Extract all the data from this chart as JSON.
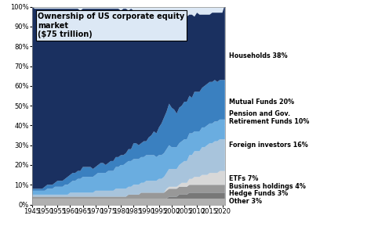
{
  "title": "Ownership of US corporate equity\nmarket\n($75 trillion)",
  "plot_bg_color": "#dce8f5",
  "fig_bg_color": "#ffffff",
  "years": [
    1945,
    1946,
    1947,
    1948,
    1949,
    1950,
    1951,
    1952,
    1953,
    1954,
    1955,
    1956,
    1957,
    1958,
    1959,
    1960,
    1961,
    1962,
    1963,
    1964,
    1965,
    1966,
    1967,
    1968,
    1969,
    1970,
    1971,
    1972,
    1973,
    1974,
    1975,
    1976,
    1977,
    1978,
    1979,
    1980,
    1981,
    1982,
    1983,
    1984,
    1985,
    1986,
    1987,
    1988,
    1989,
    1990,
    1991,
    1992,
    1993,
    1994,
    1995,
    1996,
    1997,
    1998,
    1999,
    2000,
    2001,
    2002,
    2003,
    2004,
    2005,
    2006,
    2007,
    2008,
    2009,
    2010,
    2011,
    2012,
    2013,
    2014,
    2015,
    2016,
    2017,
    2018,
    2019,
    2020,
    2021
  ],
  "series": {
    "Other": [
      3,
      3,
      3,
      3,
      3,
      3,
      3,
      3,
      3,
      3,
      3,
      3,
      3,
      3,
      3,
      3,
      3,
      3,
      3,
      3,
      3,
      3,
      3,
      3,
      3,
      3,
      3,
      3,
      3,
      3,
      3,
      3,
      3,
      3,
      3,
      3,
      3,
      3,
      3,
      3,
      3,
      3,
      3,
      3,
      3,
      3,
      3,
      3,
      3,
      3,
      3,
      3,
      3,
      3,
      3,
      3,
      3,
      3,
      3,
      3,
      3,
      3,
      3,
      3,
      3,
      3,
      3,
      3,
      3,
      3,
      3,
      3,
      3,
      3,
      3,
      3,
      3
    ],
    "Hedge Funds": [
      0,
      0,
      0,
      0,
      0,
      0,
      0,
      0,
      0,
      0,
      0,
      0,
      0,
      0,
      0,
      0,
      0,
      0,
      0,
      0,
      0,
      0,
      0,
      0,
      0,
      0,
      0,
      0,
      0,
      0,
      0,
      0,
      0,
      0,
      0,
      0,
      0,
      0,
      0,
      0,
      0,
      0,
      0,
      0,
      0,
      0,
      0,
      0,
      0,
      0,
      0,
      0,
      0,
      0,
      1,
      1,
      1,
      1,
      2,
      2,
      2,
      2,
      3,
      3,
      3,
      3,
      3,
      3,
      3,
      3,
      3,
      3,
      3,
      3,
      3,
      3,
      3
    ],
    "Business holdings": [
      1,
      1,
      1,
      1,
      1,
      1,
      1,
      1,
      1,
      1,
      1,
      1,
      1,
      1,
      1,
      1,
      1,
      1,
      1,
      1,
      1,
      1,
      1,
      1,
      1,
      1,
      1,
      1,
      1,
      1,
      1,
      1,
      1,
      1,
      1,
      1,
      1,
      1,
      2,
      2,
      2,
      2,
      2,
      3,
      3,
      3,
      3,
      3,
      3,
      3,
      3,
      3,
      3,
      4,
      4,
      4,
      4,
      4,
      4,
      4,
      4,
      4,
      4,
      4,
      4,
      4,
      4,
      4,
      4,
      4,
      4,
      4,
      4,
      4,
      4,
      4,
      4
    ],
    "ETFs": [
      0,
      0,
      0,
      0,
      0,
      0,
      0,
      0,
      0,
      0,
      0,
      0,
      0,
      0,
      0,
      0,
      0,
      0,
      0,
      0,
      0,
      0,
      0,
      0,
      0,
      0,
      0,
      0,
      0,
      0,
      0,
      0,
      0,
      0,
      0,
      0,
      0,
      0,
      0,
      0,
      0,
      0,
      0,
      0,
      0,
      0,
      0,
      0,
      0,
      0,
      0,
      0,
      0,
      1,
      1,
      1,
      1,
      1,
      1,
      2,
      2,
      2,
      3,
      3,
      4,
      4,
      4,
      5,
      5,
      5,
      6,
      6,
      6,
      6,
      7,
      7,
      7
    ],
    "Foreign investors": [
      1,
      1,
      1,
      1,
      1,
      1,
      1,
      1,
      1,
      1,
      1,
      1,
      1,
      1,
      1,
      2,
      2,
      2,
      2,
      2,
      2,
      2,
      2,
      2,
      2,
      3,
      3,
      3,
      3,
      3,
      3,
      3,
      3,
      4,
      4,
      4,
      4,
      4,
      4,
      4,
      5,
      5,
      5,
      5,
      5,
      6,
      6,
      6,
      6,
      6,
      7,
      7,
      8,
      8,
      9,
      9,
      9,
      9,
      10,
      10,
      11,
      11,
      12,
      12,
      13,
      13,
      13,
      14,
      14,
      15,
      15,
      15,
      16,
      16,
      16,
      16,
      16
    ],
    "Pension and Gov. Retirement Funds": [
      2,
      2,
      2,
      2,
      2,
      2,
      3,
      3,
      3,
      4,
      4,
      4,
      4,
      5,
      5,
      5,
      6,
      6,
      7,
      7,
      8,
      8,
      8,
      8,
      8,
      8,
      9,
      9,
      9,
      9,
      10,
      10,
      10,
      11,
      11,
      12,
      12,
      13,
      13,
      13,
      13,
      13,
      13,
      13,
      13,
      13,
      13,
      13,
      13,
      12,
      12,
      12,
      12,
      12,
      12,
      11,
      11,
      11,
      11,
      11,
      11,
      11,
      11,
      11,
      10,
      10,
      10,
      10,
      10,
      10,
      10,
      10,
      10,
      10,
      10,
      10,
      10
    ],
    "Mutual Funds": [
      1,
      1,
      1,
      1,
      1,
      2,
      2,
      2,
      2,
      2,
      3,
      3,
      3,
      3,
      4,
      4,
      4,
      4,
      4,
      4,
      5,
      5,
      5,
      5,
      4,
      4,
      4,
      5,
      5,
      4,
      4,
      5,
      5,
      5,
      5,
      5,
      5,
      5,
      6,
      6,
      8,
      8,
      7,
      7,
      8,
      7,
      9,
      10,
      12,
      12,
      14,
      16,
      18,
      19,
      21,
      20,
      19,
      17,
      18,
      18,
      19,
      19,
      19,
      18,
      20,
      20,
      20,
      20,
      21,
      21,
      21,
      21,
      21,
      20,
      20,
      20,
      20
    ],
    "Households": [
      92,
      91,
      91,
      91,
      91,
      90,
      89,
      89,
      89,
      88,
      87,
      87,
      87,
      86,
      85,
      84,
      83,
      83,
      82,
      81,
      80,
      80,
      80,
      80,
      81,
      80,
      79,
      78,
      78,
      79,
      78,
      77,
      77,
      75,
      75,
      73,
      74,
      73,
      70,
      71,
      67,
      66,
      68,
      67,
      66,
      65,
      63,
      61,
      58,
      58,
      56,
      54,
      51,
      48,
      45,
      47,
      48,
      50,
      46,
      46,
      44,
      43,
      41,
      42,
      38,
      40,
      39,
      37,
      36,
      35,
      34,
      35,
      34,
      35,
      34,
      34,
      38
    ]
  },
  "colors": {
    "Other": "#b0b0b0",
    "Hedge Funds": "#787878",
    "Business holdings": "#989898",
    "ETFs": "#d8d8d8",
    "Foreign investors": "#a8c4dc",
    "Pension and Gov. Retirement Funds": "#6aade0",
    "Mutual Funds": "#3a80c0",
    "Households": "#1a3060"
  },
  "legend_labels": {
    "Households": "Households 38%",
    "Mutual Funds": "Mutual Funds 20%",
    "Pension and Gov. Retirement Funds": "Pension and Gov.\nRetirement Funds 10%",
    "Foreign investors": "Foreign investors 16%",
    "ETFs": "ETFs 7%",
    "Business holdings": "Business holdings 4%",
    "Hedge Funds": "Hedge Funds 3%",
    "Other": "Other 3%"
  },
  "legend_y_data": [
    56,
    40,
    33,
    20,
    10,
    7,
    4,
    1.5
  ],
  "ylim": [
    0,
    100
  ],
  "ytick_labels": [
    "0%",
    "10%",
    "20%",
    "30%",
    "40%",
    "50%",
    "60%",
    "70%",
    "80%",
    "90%",
    "100%"
  ],
  "ytick_values": [
    0,
    10,
    20,
    30,
    40,
    50,
    60,
    70,
    80,
    90,
    100
  ],
  "xtick_values": [
    1945,
    1950,
    1955,
    1960,
    1965,
    1970,
    1975,
    1980,
    1985,
    1990,
    1995,
    2000,
    2005,
    2010,
    2015,
    2020
  ]
}
